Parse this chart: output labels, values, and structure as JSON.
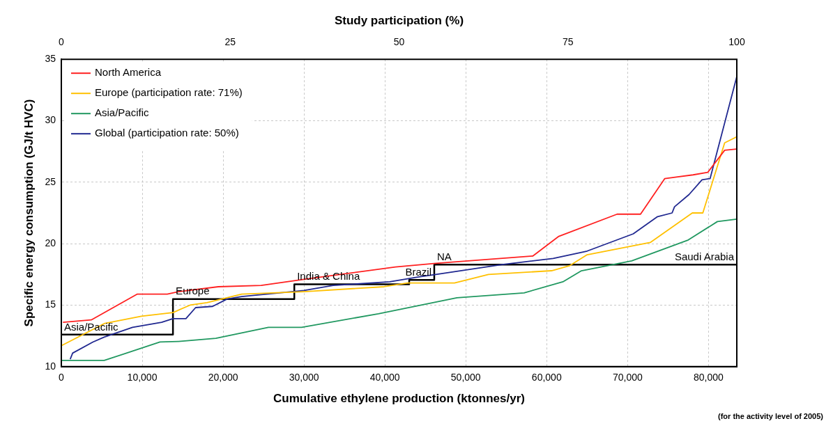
{
  "chart_data": {
    "type": "line",
    "xlabel": "Cumulative ethylene production (ktonnes/yr)",
    "ylabel": "Specific energy consumption (GJ/t HVC)",
    "x2label": "Study participation (%)",
    "xlim": [
      0,
      83500
    ],
    "xticks": [
      0,
      {
        "value": 10000,
        "label": "10,000"
      },
      {
        "value": 20000,
        "label": "20,000"
      },
      {
        "value": 30000,
        "label": "30,000"
      },
      {
        "value": 40000,
        "label": "40,000"
      },
      {
        "value": 50000,
        "label": "50,000"
      },
      {
        "value": 60000,
        "label": "60,000"
      },
      {
        "value": 70000,
        "label": "70,000"
      },
      {
        "value": 80000,
        "label": "80,000"
      }
    ],
    "x2lim": [
      0,
      100
    ],
    "x2ticks": [
      0,
      25,
      50,
      75,
      100
    ],
    "ylim": [
      10,
      35
    ],
    "yticks": [
      10,
      15,
      20,
      25,
      30,
      35
    ],
    "grid": true,
    "legend": "top left",
    "marker": "none",
    "series": [
      {
        "name": "North America",
        "color": "#ff2020",
        "x": [
          200,
          3700,
          9400,
          13100,
          14500,
          19400,
          24700,
          30000,
          41300,
          46300,
          58300,
          61500,
          68700,
          71600,
          74600,
          78100,
          79900,
          82000,
          83500
        ],
        "values": [
          13.6,
          13.8,
          15.9,
          15.9,
          16.1,
          16.5,
          16.6,
          17.1,
          18.1,
          18.4,
          19.0,
          20.6,
          22.4,
          22.4,
          25.3,
          25.6,
          25.8,
          27.6,
          27.7
        ]
      },
      {
        "name": "Europe (participation rate: 71%)",
        "color": "#ffc000",
        "x": [
          0,
          5300,
          9900,
          13800,
          15900,
          18000,
          22300,
          30000,
          39900,
          42800,
          48600,
          52800,
          60600,
          62800,
          65000,
          72800,
          78000,
          79300,
          82000,
          83500
        ],
        "values": [
          11.7,
          13.5,
          14.1,
          14.4,
          15.0,
          15.2,
          15.9,
          16.1,
          16.5,
          16.8,
          16.8,
          17.5,
          17.8,
          18.2,
          19.1,
          20.1,
          22.5,
          22.5,
          28.2,
          28.7
        ]
      },
      {
        "name": "Asia/Pacific",
        "color": "#209860",
        "x": [
          0,
          5300,
          12200,
          14500,
          19100,
          25600,
          29700,
          39200,
          48900,
          57200,
          62000,
          64300,
          70500,
          77500,
          81100,
          83500
        ],
        "values": [
          10.5,
          10.5,
          12.0,
          12.05,
          12.3,
          13.2,
          13.2,
          14.3,
          15.6,
          16.0,
          16.9,
          17.8,
          18.6,
          20.3,
          21.8,
          22.0
        ]
      },
      {
        "name": "Global (participation rate: 50%)",
        "color": "#202890",
        "x": [
          1100,
          1400,
          3900,
          5300,
          8800,
          12400,
          13800,
          15400,
          16600,
          18700,
          20500,
          22300,
          30000,
          33600,
          40600,
          44200,
          46300,
          54500,
          60800,
          65000,
          70700,
          73700,
          75500,
          75800,
          77600,
          79200,
          80200,
          83500
        ],
        "values": [
          10.6,
          11.1,
          12.0,
          12.4,
          13.2,
          13.6,
          13.9,
          13.9,
          14.8,
          14.9,
          15.5,
          15.7,
          16.2,
          16.6,
          16.9,
          17.3,
          17.5,
          18.3,
          18.8,
          19.4,
          20.8,
          22.2,
          22.5,
          23.0,
          24.0,
          25.2,
          25.3,
          33.6
        ]
      },
      {
        "type": "step",
        "color": "#000000",
        "x": [
          0,
          13800,
          28800,
          43000,
          46100,
          83500
        ],
        "values": [
          12.6,
          15.5,
          16.7,
          17.05,
          18.3,
          18.3
        ]
      }
    ],
    "annotations": [
      {
        "text": "Asia/Pacific",
        "x": 0,
        "y": 12.6
      },
      {
        "text": "Europe",
        "x": 13800,
        "y": 15.5
      },
      {
        "text": "India & China",
        "x": 28800,
        "y": 16.7
      },
      {
        "text": "Brazil",
        "x": 43000,
        "y": 17.05
      },
      {
        "text": "NA",
        "x": 46100,
        "y": 18.3
      },
      {
        "text": "Saudi Arabia",
        "x": 83500,
        "y": 18.3
      },
      "(for the activity level of 2005)"
    ]
  }
}
